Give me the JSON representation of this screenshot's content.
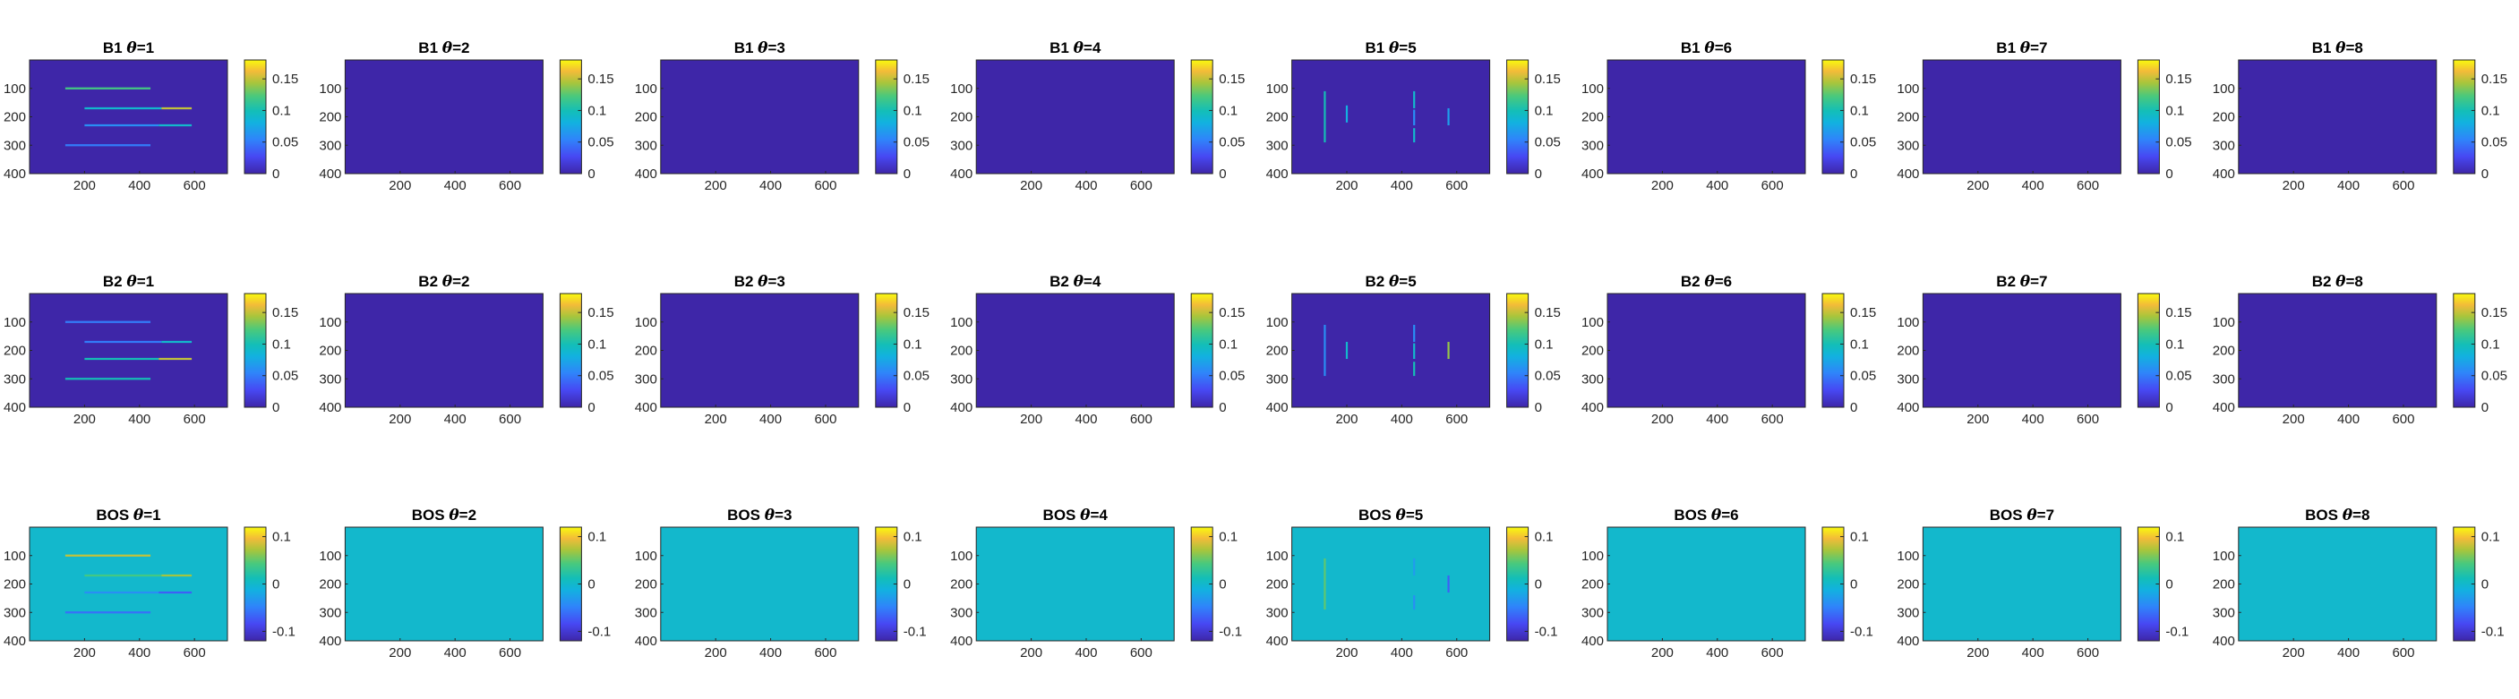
{
  "chart_data": {
    "type": "heatmap",
    "layout": {
      "rows": 3,
      "cols": 8
    },
    "axes": {
      "xlim": [
        0,
        720
      ],
      "ylim": [
        0,
        400
      ],
      "y_reversed": true,
      "xticks": [
        200,
        400,
        600
      ],
      "xtick_labels": [
        "200",
        "400",
        "600"
      ],
      "yticks": [
        100,
        200,
        300,
        400
      ],
      "ytick_labels": [
        "100",
        "200",
        "300",
        "400"
      ]
    },
    "rows": [
      {
        "prefix": "B1",
        "clim": [
          0,
          0.18
        ],
        "cb_ticks": [
          0,
          0.05,
          0.1,
          0.15
        ],
        "cb_tick_labels": [
          "0",
          "0.05",
          "0.1",
          "0.15"
        ],
        "background_value": 0,
        "panels": [
          {
            "theta": "1",
            "segments": [
              {
                "x1": 130,
                "y1": 100,
                "x2": 440,
                "y2": 100,
                "value": 0.12
              },
              {
                "x1": 200,
                "y1": 170,
                "x2": 480,
                "y2": 170,
                "value": 0.09
              },
              {
                "x1": 480,
                "y1": 170,
                "x2": 590,
                "y2": 170,
                "value": 0.15
              },
              {
                "x1": 200,
                "y1": 230,
                "x2": 470,
                "y2": 230,
                "value": 0.06
              },
              {
                "x1": 470,
                "y1": 230,
                "x2": 590,
                "y2": 230,
                "value": 0.09
              },
              {
                "x1": 130,
                "y1": 300,
                "x2": 440,
                "y2": 300,
                "value": 0.05
              }
            ]
          },
          {
            "theta": "2",
            "segments": []
          },
          {
            "theta": "3",
            "segments": []
          },
          {
            "theta": "4",
            "segments": []
          },
          {
            "theta": "5",
            "segments": [
              {
                "x1": 120,
                "y1": 110,
                "x2": 120,
                "y2": 290,
                "value": 0.1
              },
              {
                "x1": 200,
                "y1": 160,
                "x2": 200,
                "y2": 220,
                "value": 0.08
              },
              {
                "x1": 445,
                "y1": 110,
                "x2": 445,
                "y2": 170,
                "value": 0.09
              },
              {
                "x1": 445,
                "y1": 175,
                "x2": 445,
                "y2": 230,
                "value": 0.06
              },
              {
                "x1": 445,
                "y1": 240,
                "x2": 445,
                "y2": 290,
                "value": 0.09
              },
              {
                "x1": 570,
                "y1": 170,
                "x2": 570,
                "y2": 230,
                "value": 0.07
              }
            ]
          },
          {
            "theta": "6",
            "segments": []
          },
          {
            "theta": "7",
            "segments": []
          },
          {
            "theta": "8",
            "segments": []
          }
        ]
      },
      {
        "prefix": "B2",
        "clim": [
          0,
          0.18
        ],
        "cb_ticks": [
          0,
          0.05,
          0.1,
          0.15
        ],
        "cb_tick_labels": [
          "0",
          "0.05",
          "0.1",
          "0.15"
        ],
        "background_value": 0,
        "panels": [
          {
            "theta": "1",
            "segments": [
              {
                "x1": 130,
                "y1": 100,
                "x2": 440,
                "y2": 100,
                "value": 0.05
              },
              {
                "x1": 200,
                "y1": 170,
                "x2": 480,
                "y2": 170,
                "value": 0.05
              },
              {
                "x1": 480,
                "y1": 170,
                "x2": 590,
                "y2": 170,
                "value": 0.09
              },
              {
                "x1": 200,
                "y1": 230,
                "x2": 470,
                "y2": 230,
                "value": 0.1
              },
              {
                "x1": 470,
                "y1": 230,
                "x2": 590,
                "y2": 230,
                "value": 0.15
              },
              {
                "x1": 130,
                "y1": 300,
                "x2": 440,
                "y2": 300,
                "value": 0.1
              }
            ]
          },
          {
            "theta": "2",
            "segments": []
          },
          {
            "theta": "3",
            "segments": []
          },
          {
            "theta": "4",
            "segments": []
          },
          {
            "theta": "5",
            "segments": [
              {
                "x1": 120,
                "y1": 110,
                "x2": 120,
                "y2": 290,
                "value": 0.06
              },
              {
                "x1": 200,
                "y1": 170,
                "x2": 200,
                "y2": 230,
                "value": 0.09
              },
              {
                "x1": 445,
                "y1": 110,
                "x2": 445,
                "y2": 170,
                "value": 0.06
              },
              {
                "x1": 445,
                "y1": 175,
                "x2": 445,
                "y2": 230,
                "value": 0.09
              },
              {
                "x1": 445,
                "y1": 240,
                "x2": 445,
                "y2": 290,
                "value": 0.1
              },
              {
                "x1": 570,
                "y1": 170,
                "x2": 570,
                "y2": 230,
                "value": 0.14
              }
            ]
          },
          {
            "theta": "6",
            "segments": []
          },
          {
            "theta": "7",
            "segments": []
          },
          {
            "theta": "8",
            "segments": []
          }
        ]
      },
      {
        "prefix": "BOS",
        "clim": [
          -0.12,
          0.12
        ],
        "cb_ticks": [
          -0.1,
          0,
          0.1
        ],
        "cb_tick_labels": [
          "-0.1",
          "0",
          "0.1"
        ],
        "background_value": 0,
        "panels": [
          {
            "theta": "1",
            "segments": [
              {
                "x1": 130,
                "y1": 100,
                "x2": 440,
                "y2": 100,
                "value": 0.08
              },
              {
                "x1": 200,
                "y1": 170,
                "x2": 480,
                "y2": 170,
                "value": 0.04
              },
              {
                "x1": 480,
                "y1": 170,
                "x2": 590,
                "y2": 170,
                "value": 0.07
              },
              {
                "x1": 200,
                "y1": 230,
                "x2": 470,
                "y2": 230,
                "value": -0.04
              },
              {
                "x1": 470,
                "y1": 230,
                "x2": 590,
                "y2": 230,
                "value": -0.07
              },
              {
                "x1": 130,
                "y1": 300,
                "x2": 440,
                "y2": 300,
                "value": -0.06
              }
            ]
          },
          {
            "theta": "2",
            "segments": []
          },
          {
            "theta": "3",
            "segments": []
          },
          {
            "theta": "4",
            "segments": []
          },
          {
            "theta": "5",
            "segments": [
              {
                "x1": 120,
                "y1": 110,
                "x2": 120,
                "y2": 290,
                "value": 0.05
              },
              {
                "x1": 445,
                "y1": 110,
                "x2": 445,
                "y2": 170,
                "value": -0.03
              },
              {
                "x1": 445,
                "y1": 240,
                "x2": 445,
                "y2": 290,
                "value": -0.04
              },
              {
                "x1": 570,
                "y1": 170,
                "x2": 570,
                "y2": 230,
                "value": -0.07
              }
            ]
          },
          {
            "theta": "6",
            "segments": []
          },
          {
            "theta": "7",
            "segments": []
          },
          {
            "theta": "8",
            "segments": []
          }
        ]
      }
    ]
  }
}
